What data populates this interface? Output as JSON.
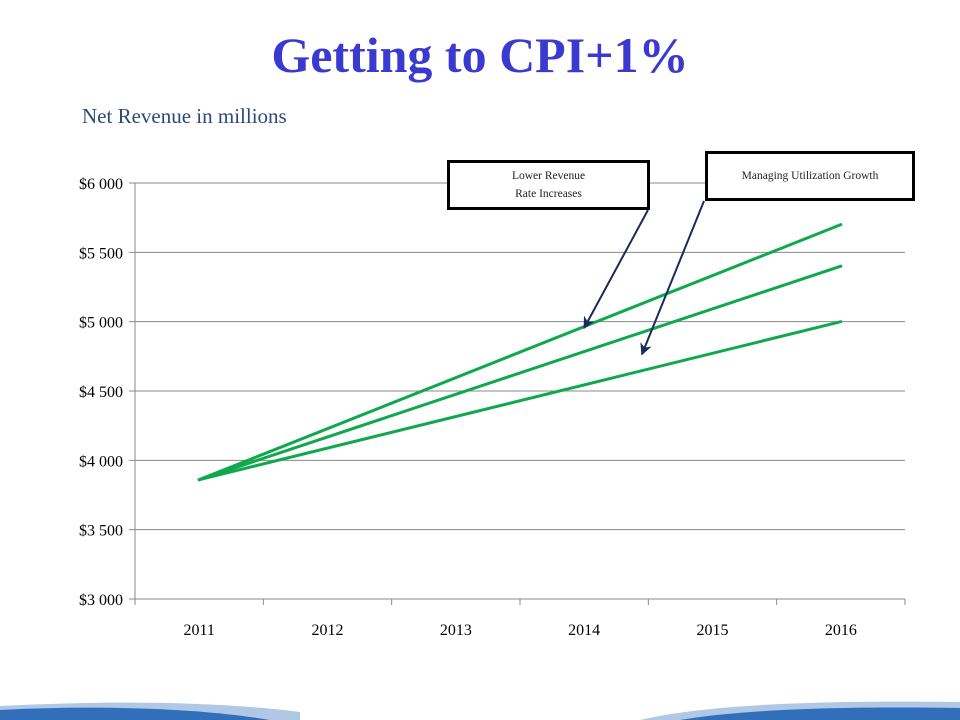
{
  "slide": {
    "title": "Getting to CPI+1%",
    "subtitle": "Net Revenue in millions"
  },
  "colors": {
    "title": "#3a3ad0",
    "subtitle": "#2c4a78",
    "series": "#10a84c",
    "arrow": "#1a2a5a",
    "footer_band": "#1c5fb4"
  },
  "callouts": [
    {
      "lines": [
        "Lower Revenue",
        "Rate Increases"
      ],
      "points_to": {
        "x": 2014.0,
        "y": 4940
      }
    },
    {
      "lines": [
        "Managing Utilization Growth"
      ],
      "points_to": {
        "x": 2014.45,
        "y": 4750
      }
    }
  ],
  "chart_data": {
    "type": "line",
    "title": "",
    "xlabel": "",
    "ylabel": "",
    "categories": [
      "2011",
      "2012",
      "2013",
      "2014",
      "2015",
      "2016"
    ],
    "x_range": [
      2011,
      2016
    ],
    "ylim": [
      3000,
      6000
    ],
    "y_ticks": [
      3000,
      3500,
      4000,
      4500,
      5000,
      5500,
      6000
    ],
    "y_tick_labels": [
      "$3 000",
      "$3 500",
      "$4 000",
      "$4 500",
      "$5 000",
      "$5 500",
      "$6 000"
    ],
    "grid": true,
    "legend": "none",
    "series": [
      {
        "x": [
          2011,
          2016
        ],
        "y": [
          3860,
          5700
        ]
      },
      {
        "x": [
          2011,
          2016
        ],
        "y": [
          3860,
          5400
        ]
      },
      {
        "x": [
          2011,
          2016
        ],
        "y": [
          3860,
          5000
        ]
      }
    ]
  }
}
